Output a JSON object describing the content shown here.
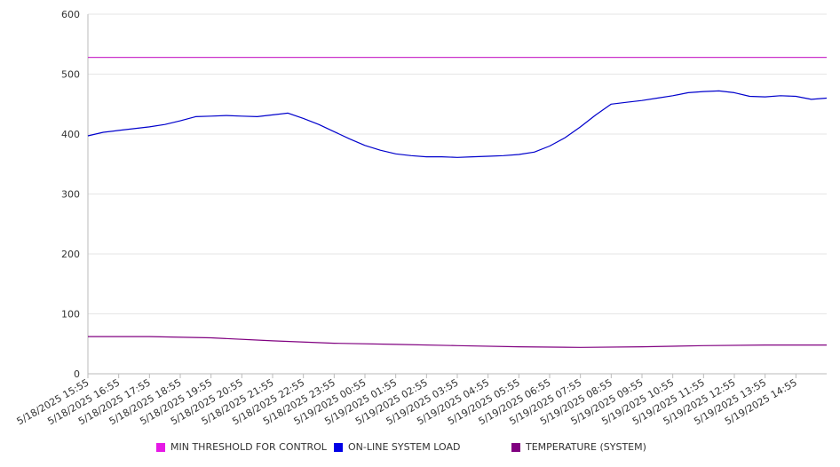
{
  "chart_data": {
    "type": "line",
    "ylim": [
      0,
      600
    ],
    "yticks": [
      0,
      100,
      200,
      300,
      400,
      500,
      600
    ],
    "grid": true,
    "legend_position": "bottom",
    "x_range": [
      "5/18/2025 15:55",
      "5/19/2025 15:55"
    ],
    "x_tick_labels": [
      "5/18/2025 15:55",
      "5/18/2025 16:55",
      "5/18/2025 17:55",
      "5/18/2025 18:55",
      "5/18/2025 19:55",
      "5/18/2025 20:55",
      "5/18/2025 21:55",
      "5/18/2025 22:55",
      "5/18/2025 23:55",
      "5/19/2025 00:55",
      "5/19/2025 01:55",
      "5/19/2025 02:55",
      "5/19/2025 03:55",
      "5/19/2025 04:55",
      "5/19/2025 05:55",
      "5/19/2025 06:55",
      "5/19/2025 07:55",
      "5/19/2025 08:55",
      "5/19/2025 09:55",
      "5/19/2025 10:55",
      "5/19/2025 11:55",
      "5/19/2025 12:55",
      "5/19/2025 13:55",
      "5/19/2025 14:55"
    ],
    "series": [
      {
        "name": "MIN THRESHOLD FOR CONTROL",
        "color": "#cc33cc",
        "x": [
          "5/18/2025 15:55",
          "5/19/2025 15:55"
        ],
        "values": [
          528,
          528
        ]
      },
      {
        "name": "ON-LINE SYSTEM LOAD",
        "color": "#0000cc",
        "x": [
          "5/18/2025 15:55",
          "5/18/2025 16:25",
          "5/18/2025 16:55",
          "5/18/2025 17:25",
          "5/18/2025 17:55",
          "5/18/2025 18:25",
          "5/18/2025 18:55",
          "5/18/2025 19:25",
          "5/18/2025 19:55",
          "5/18/2025 20:25",
          "5/18/2025 20:55",
          "5/18/2025 21:25",
          "5/18/2025 21:55",
          "5/18/2025 22:25",
          "5/18/2025 22:55",
          "5/18/2025 23:25",
          "5/18/2025 23:55",
          "5/19/2025 00:25",
          "5/19/2025 00:55",
          "5/19/2025 01:25",
          "5/19/2025 01:55",
          "5/19/2025 02:25",
          "5/19/2025 02:55",
          "5/19/2025 03:25",
          "5/19/2025 03:55",
          "5/19/2025 04:25",
          "5/19/2025 04:55",
          "5/19/2025 05:25",
          "5/19/2025 05:55",
          "5/19/2025 06:25",
          "5/19/2025 06:55",
          "5/19/2025 07:25",
          "5/19/2025 07:55",
          "5/19/2025 08:25",
          "5/19/2025 08:55",
          "5/19/2025 09:25",
          "5/19/2025 09:55",
          "5/19/2025 10:25",
          "5/19/2025 10:55",
          "5/19/2025 11:25",
          "5/19/2025 11:55",
          "5/19/2025 12:25",
          "5/19/2025 12:55",
          "5/19/2025 13:25",
          "5/19/2025 13:55",
          "5/19/2025 14:25",
          "5/19/2025 14:55",
          "5/19/2025 15:25",
          "5/19/2025 15:55"
        ],
        "values": [
          397,
          403,
          406,
          409,
          412,
          416,
          422,
          429,
          430,
          431,
          430,
          429,
          432,
          435,
          426,
          416,
          404,
          392,
          381,
          373,
          367,
          364,
          362,
          362,
          361,
          362,
          363,
          364,
          366,
          370,
          380,
          394,
          412,
          432,
          450,
          453,
          456,
          460,
          464,
          469,
          471,
          472,
          469,
          463,
          462,
          464,
          463,
          458,
          460
        ]
      },
      {
        "name": "TEMPERATURE (SYSTEM)",
        "color": "#800080",
        "x": [
          "5/18/2025 15:55",
          "5/18/2025 17:55",
          "5/18/2025 19:55",
          "5/18/2025 21:55",
          "5/18/2025 23:55",
          "5/19/2025 01:55",
          "5/19/2025 03:55",
          "5/19/2025 05:55",
          "5/19/2025 07:55",
          "5/19/2025 09:55",
          "5/19/2025 11:55",
          "5/19/2025 13:55",
          "5/19/2025 15:55"
        ],
        "values": [
          62,
          62,
          60,
          55,
          51,
          49,
          47,
          45,
          44,
          45,
          47,
          48,
          48
        ]
      }
    ]
  }
}
